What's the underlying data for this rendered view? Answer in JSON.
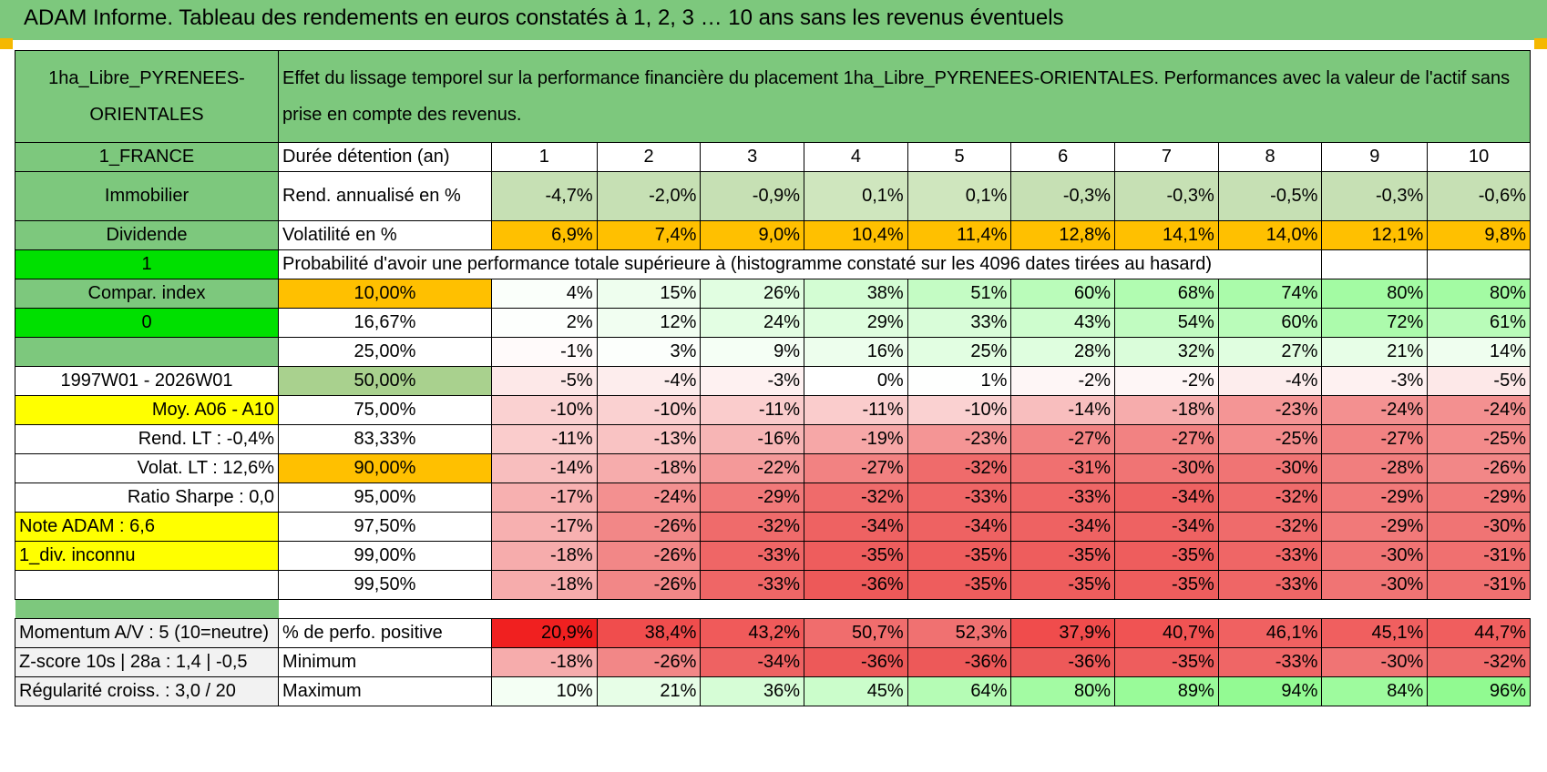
{
  "title": "ADAM Informe. Tableau des rendements en euros constatés à 1, 2, 3 … 10 ans sans les revenus éventuels",
  "left": {
    "asset_name": "1ha_Libre_PYRENEES-ORIENTALES",
    "country": "1_FRANCE",
    "category": "Immobilier",
    "type": "Dividende",
    "flag_one": "1",
    "compar_index": "Compar. index",
    "flag_zero": "0",
    "period": "1997W01 - 2026W01",
    "moy": "Moy. A06 - A10",
    "rend_lt": "Rend. LT :    -0,4%",
    "volat_lt": "Volat. LT :    12,6%",
    "sharpe": "Ratio Sharpe :     0,0",
    "note": "Note ADAM : 6,6",
    "div": "1_div. inconnu",
    "momentum": "Momentum A/V : 5 (10=neutre)",
    "zscore": "Z-score 10s | 28a : 1,4 | -0,5",
    "regularite": "Régularité croiss. : 3,0 / 20"
  },
  "description": "Effet du lissage temporel sur la performance financière du placement 1ha_Libre_PYRENEES-ORIENTALES. Performances avec la valeur de l'actif sans prise en compte des revenus.",
  "years_label": "Durée détention (an)",
  "years": [
    "1",
    "2",
    "3",
    "4",
    "5",
    "6",
    "7",
    "8",
    "9",
    "10"
  ],
  "rend_label": "Rend. annualisé en %",
  "rend": [
    "-4,7%",
    "-2,0%",
    "-0,9%",
    "0,1%",
    "0,1%",
    "-0,3%",
    "-0,3%",
    "-0,5%",
    "-0,3%",
    "-0,6%"
  ],
  "vol_label": "Volatilité en %",
  "vol": [
    "6,9%",
    "7,4%",
    "9,0%",
    "10,4%",
    "11,4%",
    "12,8%",
    "14,1%",
    "14,0%",
    "12,1%",
    "9,8%"
  ],
  "prob_label": "Probabilité d'avoir une performance totale supérieure à (histogramme constaté sur les 4096 dates tirées au hasard)",
  "quantiles": [
    {
      "q": "10,00%",
      "vals": [
        "4%",
        "15%",
        "26%",
        "38%",
        "51%",
        "60%",
        "68%",
        "74%",
        "80%",
        "80%"
      ]
    },
    {
      "q": "16,67%",
      "vals": [
        "2%",
        "12%",
        "24%",
        "29%",
        "33%",
        "43%",
        "54%",
        "60%",
        "72%",
        "61%"
      ]
    },
    {
      "q": "25,00%",
      "vals": [
        "-1%",
        "3%",
        "9%",
        "16%",
        "25%",
        "28%",
        "32%",
        "27%",
        "21%",
        "14%"
      ]
    },
    {
      "q": "50,00%",
      "vals": [
        "-5%",
        "-4%",
        "-3%",
        "0%",
        "1%",
        "-2%",
        "-2%",
        "-4%",
        "-3%",
        "-5%"
      ]
    },
    {
      "q": "75,00%",
      "vals": [
        "-10%",
        "-10%",
        "-11%",
        "-11%",
        "-10%",
        "-14%",
        "-18%",
        "-23%",
        "-24%",
        "-24%"
      ]
    },
    {
      "q": "83,33%",
      "vals": [
        "-11%",
        "-13%",
        "-16%",
        "-19%",
        "-23%",
        "-27%",
        "-27%",
        "-25%",
        "-27%",
        "-25%"
      ]
    },
    {
      "q": "90,00%",
      "vals": [
        "-14%",
        "-18%",
        "-22%",
        "-27%",
        "-32%",
        "-31%",
        "-30%",
        "-30%",
        "-28%",
        "-26%"
      ]
    },
    {
      "q": "95,00%",
      "vals": [
        "-17%",
        "-24%",
        "-29%",
        "-32%",
        "-33%",
        "-33%",
        "-34%",
        "-32%",
        "-29%",
        "-29%"
      ]
    },
    {
      "q": "97,50%",
      "vals": [
        "-17%",
        "-26%",
        "-32%",
        "-34%",
        "-34%",
        "-34%",
        "-34%",
        "-32%",
        "-29%",
        "-30%"
      ]
    },
    {
      "q": "99,00%",
      "vals": [
        "-18%",
        "-26%",
        "-33%",
        "-35%",
        "-35%",
        "-35%",
        "-35%",
        "-33%",
        "-30%",
        "-31%"
      ]
    },
    {
      "q": "99,50%",
      "vals": [
        "-18%",
        "-26%",
        "-33%",
        "-36%",
        "-35%",
        "-35%",
        "-35%",
        "-33%",
        "-30%",
        "-31%"
      ]
    }
  ],
  "pos_label": "% de perfo. positive",
  "pos": [
    "20,9%",
    "38,4%",
    "43,2%",
    "50,7%",
    "52,3%",
    "37,9%",
    "40,7%",
    "46,1%",
    "45,1%",
    "44,7%"
  ],
  "min_label": "Minimum",
  "min": [
    "-18%",
    "-26%",
    "-34%",
    "-36%",
    "-36%",
    "-36%",
    "-35%",
    "-33%",
    "-30%",
    "-32%"
  ],
  "max_label": "Maximum",
  "max": [
    "10%",
    "21%",
    "36%",
    "45%",
    "64%",
    "80%",
    "89%",
    "94%",
    "84%",
    "96%"
  ],
  "colors": {
    "header_green": "#7dc87d",
    "bright_green": "#00e000",
    "yellow": "#ffff00",
    "orange": "#ffc000",
    "red_text": "#d01818"
  }
}
